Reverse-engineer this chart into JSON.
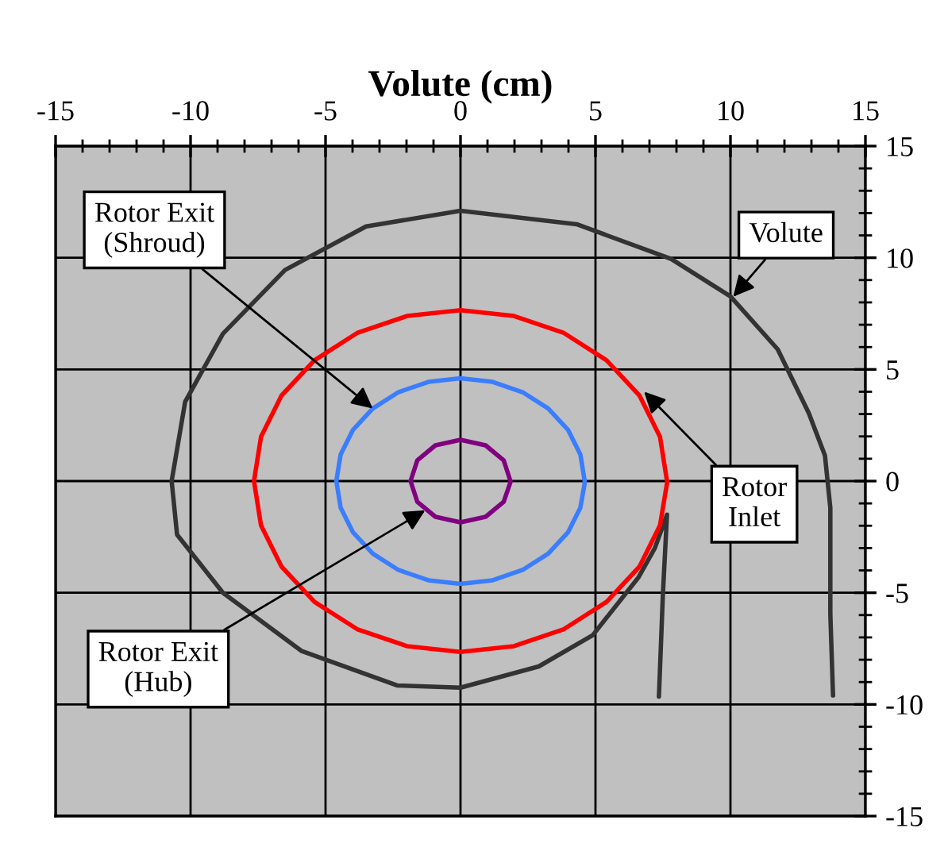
{
  "chart_data": {
    "type": "line",
    "xlabel": "Volute (cm)",
    "xlim": [
      -15,
      15
    ],
    "ylim": [
      -15,
      15
    ],
    "xticks": [
      -15,
      {
        "value": -14,
        "label": null
      },
      {
        "value": -13,
        "label": null
      },
      {
        "value": -12,
        "label": null
      },
      {
        "value": -11,
        "label": null
      },
      -10,
      {
        "value": -9,
        "label": null
      },
      {
        "value": -8,
        "label": null
      },
      {
        "value": -7,
        "label": null
      },
      {
        "value": -6,
        "label": null
      },
      -5,
      {
        "value": -4,
        "label": null
      },
      {
        "value": -3,
        "label": null
      },
      {
        "value": -2,
        "label": null
      },
      {
        "value": -1,
        "label": null
      },
      0,
      {
        "value": 1,
        "label": null
      },
      {
        "value": 2,
        "label": null
      },
      {
        "value": 3,
        "label": null
      },
      {
        "value": 4,
        "label": null
      },
      5,
      {
        "value": 6,
        "label": null
      },
      {
        "value": 7,
        "label": null
      },
      {
        "value": 8,
        "label": null
      },
      {
        "value": 9,
        "label": null
      },
      10,
      {
        "value": 11,
        "label": null
      },
      {
        "value": 12,
        "label": null
      },
      {
        "value": 13,
        "label": null
      },
      {
        "value": 14,
        "label": null
      },
      15
    ],
    "yticks": [
      -15,
      {
        "value": -14,
        "label": null
      },
      {
        "value": -13,
        "label": null
      },
      {
        "value": -12,
        "label": null
      },
      {
        "value": -11,
        "label": null
      },
      -10,
      {
        "value": -9,
        "label": null
      },
      {
        "value": -8,
        "label": null
      },
      {
        "value": -7,
        "label": null
      },
      {
        "value": -6,
        "label": null
      },
      -5,
      {
        "value": -4,
        "label": null
      },
      {
        "value": -3,
        "label": null
      },
      {
        "value": -2,
        "label": null
      },
      {
        "value": -1,
        "label": null
      },
      0,
      {
        "value": 1,
        "label": null
      },
      {
        "value": 2,
        "label": null
      },
      {
        "value": 3,
        "label": null
      },
      {
        "value": 4,
        "label": null
      },
      5,
      {
        "value": 6,
        "label": null
      },
      {
        "value": 7,
        "label": null
      },
      {
        "value": 8,
        "label": null
      },
      {
        "value": 9,
        "label": null
      },
      10,
      {
        "value": 11,
        "label": null
      },
      {
        "value": 12,
        "label": null
      },
      {
        "value": 13,
        "label": null
      },
      {
        "value": 14,
        "label": null
      },
      15
    ],
    "grid": true,
    "series": [
      {
        "color": "#333333",
        "x": [
          7.35,
          7.5,
          7.65,
          7.2,
          6.6,
          4.9,
          2.9,
          0,
          -2.35,
          -5.9,
          -8.8,
          -10.5,
          -10.7,
          -10.2,
          -8.8,
          -6.5,
          -3.5,
          0,
          4.3,
          7.8,
          10,
          11.75,
          12.9,
          13.5,
          13.7,
          13.7,
          13.8
        ],
        "values": [
          -9.65,
          -5,
          -1.5,
          -3.0,
          -4.3,
          -6.9,
          -8.3,
          -9.25,
          -9.15,
          -7.6,
          -5.0,
          -2.4,
          0,
          3.55,
          6.6,
          9.45,
          11.4,
          12.1,
          11.5,
          9.95,
          8.27,
          5.9,
          3.05,
          1.15,
          -1.2,
          -5.95,
          -9.6
        ]
      },
      {
        "color": "#ff0000",
        "x": [
          7.65,
          7.39,
          6.63,
          5.41,
          3.83,
          1.98,
          0,
          -1.98,
          -3.83,
          -5.41,
          -6.63,
          -7.39,
          -7.65,
          -7.39,
          -6.63,
          -5.41,
          -3.83,
          -1.98,
          0,
          1.98,
          3.83,
          5.41,
          6.63,
          7.39,
          7.65
        ],
        "values": [
          0,
          1.98,
          3.83,
          5.41,
          6.63,
          7.39,
          7.65,
          7.39,
          6.63,
          5.41,
          3.83,
          1.98,
          0,
          -1.98,
          -3.83,
          -5.41,
          -6.63,
          -7.39,
          -7.65,
          -7.39,
          -6.63,
          -5.41,
          -3.83,
          -1.98,
          -0.1
        ]
      },
      {
        "color": "#3a7dff",
        "x": [
          4.6,
          4.44,
          3.98,
          3.25,
          2.3,
          1.19,
          0,
          -1.19,
          -2.3,
          -3.25,
          -3.98,
          -4.44,
          -4.6,
          -4.44,
          -3.98,
          -3.25,
          -2.3,
          -1.19,
          0,
          1.19,
          2.3,
          3.25,
          3.98,
          4.44,
          4.6
        ],
        "values": [
          0,
          1.19,
          2.3,
          3.25,
          3.98,
          4.44,
          4.6,
          4.44,
          3.98,
          3.25,
          2.3,
          1.19,
          0,
          -1.19,
          -2.3,
          -3.25,
          -3.98,
          -4.44,
          -4.6,
          -4.44,
          -3.98,
          -3.25,
          -2.3,
          -1.19,
          -0.1
        ]
      },
      {
        "color": "#800080",
        "x": [
          1.85,
          1.6,
          0.93,
          0,
          -0.93,
          -1.6,
          -1.85,
          -1.6,
          -0.93,
          0,
          0.93,
          1.6,
          1.85
        ],
        "values": [
          0,
          0.93,
          1.6,
          1.85,
          1.6,
          0.93,
          0,
          -0.93,
          -1.6,
          -1.85,
          -1.6,
          -0.93,
          -0.05
        ]
      }
    ],
    "annotations": [
      {
        "text": "Rotor Exit\n(Shroud)",
        "x": -3.25,
        "y": 3.25
      },
      {
        "text": "Volute",
        "x": 10.1,
        "y": 8.25
      },
      {
        "text": "Rotor\nInlet",
        "x": 6.8,
        "y": 4.0
      },
      {
        "text": "Rotor Exit\n(Hub)",
        "x": -1.31,
        "y": -1.31
      }
    ]
  }
}
